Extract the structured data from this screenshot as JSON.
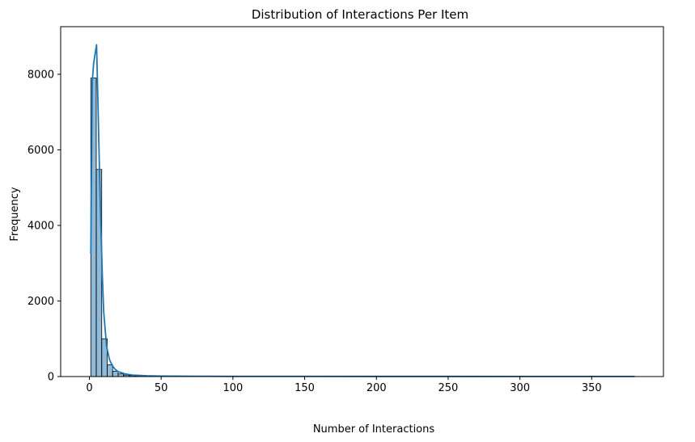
{
  "chart_data": {
    "type": "bar",
    "title": "Distribution of Interactions Per Item",
    "xlabel": "Number of Interactions",
    "ylabel": "Frequency",
    "xlim": [
      -20,
      400
    ],
    "ylim": [
      0,
      9260
    ],
    "xticks": [
      0,
      50,
      100,
      150,
      200,
      250,
      300,
      350
    ],
    "yticks": [
      0,
      2000,
      4000,
      6000,
      8000
    ],
    "grid": false,
    "bin_width": 3.8,
    "bins": [
      {
        "x0": 1.0,
        "count": 7900
      },
      {
        "x0": 4.8,
        "count": 5480
      },
      {
        "x0": 8.6,
        "count": 1000
      },
      {
        "x0": 12.4,
        "count": 310
      },
      {
        "x0": 16.2,
        "count": 140
      },
      {
        "x0": 20.0,
        "count": 70
      },
      {
        "x0": 23.8,
        "count": 40
      },
      {
        "x0": 27.6,
        "count": 25
      },
      {
        "x0": 31.4,
        "count": 15
      },
      {
        "x0": 35.2,
        "count": 10
      },
      {
        "x0": 39.0,
        "count": 8
      },
      {
        "x0": 42.8,
        "count": 6
      },
      {
        "x0": 46.6,
        "count": 5
      },
      {
        "x0": 50.4,
        "count": 4
      },
      {
        "x0": 54.2,
        "count": 3
      },
      {
        "x0": 58.0,
        "count": 3
      },
      {
        "x0": 61.8,
        "count": 2
      },
      {
        "x0": 65.6,
        "count": 2
      }
    ],
    "kde": {
      "x": [
        1,
        2,
        3,
        4,
        5,
        6,
        7,
        8,
        9,
        10,
        12,
        14,
        16,
        18,
        20,
        25,
        30,
        40,
        50,
        75,
        100,
        150,
        200,
        250,
        300,
        350,
        380
      ],
      "y": [
        3250,
        7800,
        8300,
        8550,
        8780,
        7200,
        5500,
        4000,
        2700,
        1700,
        800,
        450,
        290,
        190,
        130,
        70,
        40,
        20,
        12,
        8,
        6,
        5,
        4,
        4,
        3,
        3,
        2
      ]
    },
    "colors": {
      "bar_fill": "#1f77b4",
      "bar_fill_opacity": 0.5,
      "bar_edge": "#000000",
      "kde_line": "#1f77b4"
    }
  }
}
